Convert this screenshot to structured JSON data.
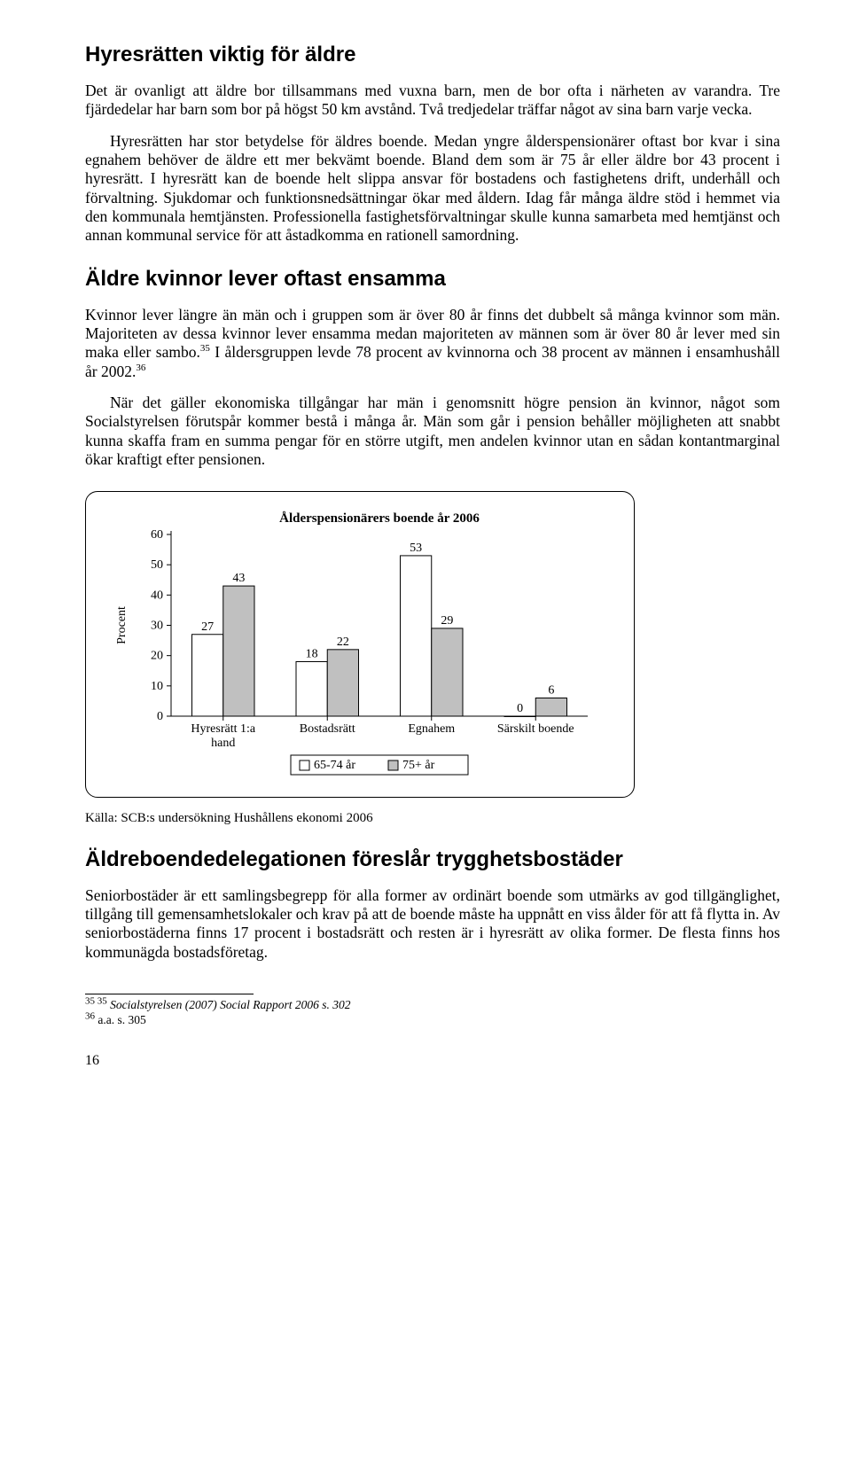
{
  "section1": {
    "heading": "Hyresrätten viktig för äldre",
    "p1": "Det är ovanligt att äldre bor tillsammans med vuxna barn, men de bor ofta i närheten av varandra. Tre fjärdedelar har barn som bor på högst 50 km avstånd. Två tredjedelar träffar något av sina barn varje vecka.",
    "p2_before_sup": "Hyresrätten har stor betydelse för äldres boende. Medan yngre ålderspensionärer oftast bor kvar i sina egnahem behöver de äldre ett mer bekvämt boende. Bland dem som är 75 år eller äldre bor 43 procent i hyresrätt. I hyresrätt kan de boende helt slippa ansvar för bostadens och fastighetens drift, underhåll och förvaltning. Sjukdomar och funktionsnedsättningar ökar med åldern. Idag får många äldre stöd i hemmet via den kommunala hemtjänsten. Professionella fastighetsförvaltningar skulle kunna samarbeta med hemtjänst och annan kommunal service för att åstadkomma en rationell samordning."
  },
  "section2": {
    "heading": "Äldre kvinnor lever oftast ensamma",
    "p1_a": "Kvinnor lever längre än män och i gruppen som är över 80 år finns det dubbelt så många kvinnor som män. Majoriteten av dessa kvinnor lever ensamma medan majoriteten av männen som är över 80 år lever med sin maka eller sambo.",
    "p1_sup1": "35",
    "p1_b": " I åldersgruppen levde 78 procent av kvinnorna och 38 procent av männen i ensamhushåll år 2002.",
    "p1_sup2": "36",
    "p2": "När det gäller ekonomiska tillgångar har män i genomsnitt högre pension än kvinnor, något som Socialstyrelsen förutspår kommer bestå i många år. Män som går i pension behåller möjligheten att snabbt kunna skaffa fram en summa pengar för en större utgift, men andelen kvinnor utan en sådan kontantmarginal ökar kraftigt efter pensionen."
  },
  "chart": {
    "title": "Ålderspensionärers boende år 2006",
    "title_fontsize": 15,
    "title_weight": "bold",
    "y_label": "Procent",
    "label_fontsize": 14,
    "ymax": 60,
    "ytick_step": 10,
    "categories": [
      "Hyresrätt 1:a hand",
      "Bostadsrätt",
      "Egnahem",
      "Särskilt boende"
    ],
    "series": [
      {
        "name": "65-74 år",
        "fill": "#ffffff",
        "values": [
          27,
          18,
          53,
          0
        ]
      },
      {
        "name": "75+ år",
        "fill": "#c0c0c0",
        "values": [
          43,
          22,
          29,
          6
        ]
      }
    ],
    "stroke": "#000000",
    "tick_color": "#000000",
    "grid": false,
    "background": "#ffffff",
    "legend_box_stroke": "#000000",
    "legend_labels": [
      "65-74 år",
      "75+ år"
    ]
  },
  "source_line": "Källa: SCB:s undersökning Hushållens ekonomi 2006",
  "section3": {
    "heading": "Äldreboendedelegationen föreslår trygghetsbostäder",
    "p1": "Seniorbostäder är ett samlingsbegrepp för alla former av ordinärt boende som utmärks av god tillgänglighet, tillgång till gemensamhetslokaler och krav på att de boende måste ha uppnått en viss ålder för att få flytta in.  Av seniorbostäderna finns 17 procent i bostadsrätt och resten är i hyresrätt av olika former. De flesta finns hos kommunägda bostadsföretag."
  },
  "footnotes": {
    "fn1_sup": "35 35",
    "fn1_text": " Socialstyrelsen (2007) Social Rapport 2006  s. 302",
    "fn2_sup": "36",
    "fn2_text": " a.a. s. 305"
  },
  "page_number": "16"
}
